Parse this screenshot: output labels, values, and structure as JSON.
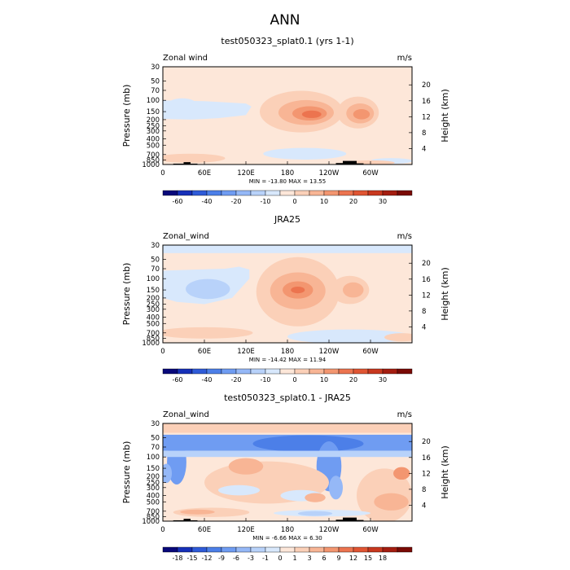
{
  "figure": {
    "main_title": "ANN"
  },
  "colors": {
    "panel_bg": "#FDE7D9",
    "title_gray": "#777777"
  },
  "chart_data": [
    {
      "type": "heatmap",
      "title": "test050323_splat0.1 (yrs 1-1)",
      "variable_label": "Zonal wind",
      "units": "m/s",
      "ylabel": "Pressure (mb)",
      "ylabel_right": "Height (km)",
      "x_ticks": [
        "0",
        "60E",
        "120E",
        "180",
        "120W",
        "60W"
      ],
      "y_ticks": [
        "30",
        "50",
        "70",
        "100",
        "150",
        "200",
        "250",
        "300",
        "400",
        "500",
        "700",
        "850",
        "1000"
      ],
      "y_right_ticks": [
        "20",
        "16",
        "12",
        "8",
        "4"
      ],
      "min_max": "MIN = -13.80   MAX =  13.55",
      "colorbar": {
        "labels": [
          "-60",
          "-40",
          "-20",
          "-10",
          "0",
          "10",
          "20",
          "30"
        ],
        "colors": [
          "#08087A",
          "#1630B8",
          "#2F5BD8",
          "#4C7FE8",
          "#6F9CF2",
          "#95B8F7",
          "#B8D2FA",
          "#D8E8FC",
          "#FDE7D9",
          "#FBD0B8",
          "#F8B595",
          "#F39670",
          "#EC744F",
          "#E05533",
          "#C8381F",
          "#A41D10",
          "#7A0A05"
        ]
      },
      "regions": [
        {
          "shape": "poly",
          "level": "#D8E8FC",
          "pts": [
            [
              0,
              100
            ],
            [
              60,
              103
            ],
            [
              120,
              112
            ],
            [
              128,
              125
            ],
            [
              120,
              170
            ],
            [
              80,
              190
            ],
            [
              40,
              200
            ],
            [
              0,
              195
            ]
          ]
        },
        {
          "shape": "ell",
          "level": "#D8E8FC",
          "lon": 28,
          "p": 120,
          "rx": 22,
          "ry": 30
        },
        {
          "shape": "ell",
          "level": "#FBD0B8",
          "lon": 200,
          "p": 150,
          "rx": 60,
          "ry": 95
        },
        {
          "shape": "ell",
          "level": "#F8B595",
          "lon": 207,
          "p": 155,
          "rx": 40,
          "ry": 65
        },
        {
          "shape": "ell",
          "level": "#F39670",
          "lon": 212,
          "p": 160,
          "rx": 25,
          "ry": 40
        },
        {
          "shape": "ell",
          "level": "#EC744F",
          "lon": 215,
          "p": 165,
          "rx": 14,
          "ry": 22
        },
        {
          "shape": "ell",
          "level": "#FBD0B8",
          "lon": 282,
          "p": 155,
          "rx": 30,
          "ry": 80
        },
        {
          "shape": "ell",
          "level": "#F8B595",
          "lon": 285,
          "p": 160,
          "rx": 20,
          "ry": 55
        },
        {
          "shape": "ell",
          "level": "#F39670",
          "lon": 287,
          "p": 165,
          "rx": 12,
          "ry": 30
        },
        {
          "shape": "ell",
          "level": "#FBD0B8",
          "lon": 40,
          "p": 800,
          "rx": 50,
          "ry": 130
        },
        {
          "shape": "ell",
          "level": "#D8E8FC",
          "lon": 205,
          "p": 680,
          "rx": 60,
          "ry": 140
        },
        {
          "shape": "ell",
          "level": "#D8E8FC",
          "lon": 330,
          "p": 880,
          "rx": 30,
          "ry": 90
        },
        {
          "shape": "ell",
          "level": "#FBD0B8",
          "lon": 300,
          "p": 940,
          "rx": 35,
          "ry": 50
        }
      ],
      "topography": [
        [
          15,
          30,
          1000,
          970
        ],
        [
          30,
          40,
          1000,
          920
        ],
        [
          40,
          50,
          1000,
          970
        ],
        [
          250,
          260,
          1000,
          950
        ],
        [
          260,
          280,
          1000,
          880
        ],
        [
          280,
          290,
          1000,
          960
        ]
      ]
    },
    {
      "type": "heatmap",
      "title": "JRA25",
      "variable_label": "Zonal_wind",
      "units": "m/s",
      "ylabel": "Pressure (mb)",
      "ylabel_right": "Height (km)",
      "x_ticks": [
        "0",
        "60E",
        "120E",
        "180",
        "120W",
        "60W"
      ],
      "y_ticks": [
        "30",
        "50",
        "70",
        "100",
        "150",
        "200",
        "250",
        "300",
        "400",
        "500",
        "700",
        "850",
        "1000"
      ],
      "y_right_ticks": [
        "20",
        "16",
        "12",
        "8",
        "4"
      ],
      "min_max": "MIN = -14.42   MAX =  11.94",
      "colorbar": {
        "labels": [
          "-60",
          "-40",
          "-20",
          "-10",
          "0",
          "10",
          "20",
          "30"
        ],
        "colors": [
          "#08087A",
          "#1630B8",
          "#2F5BD8",
          "#4C7FE8",
          "#6F9CF2",
          "#95B8F7",
          "#B8D2FA",
          "#D8E8FC",
          "#FDE7D9",
          "#FBD0B8",
          "#F8B595",
          "#F39670",
          "#EC744F",
          "#E05533",
          "#C8381F",
          "#A41D10",
          "#7A0A05"
        ]
      },
      "regions": [
        {
          "shape": "band",
          "level": "#D8E8FC",
          "p1": 30,
          "p2": 40
        },
        {
          "shape": "poly",
          "level": "#D8E8FC",
          "pts": [
            [
              0,
              75
            ],
            [
              50,
              72
            ],
            [
              90,
              70
            ],
            [
              110,
              65
            ],
            [
              125,
              72
            ],
            [
              125,
              100
            ],
            [
              100,
              200
            ],
            [
              60,
              250
            ],
            [
              20,
              230
            ],
            [
              0,
              200
            ]
          ]
        },
        {
          "shape": "ell",
          "level": "#B8D2FA",
          "lon": 65,
          "p": 145,
          "rx": 32,
          "ry": 50
        },
        {
          "shape": "ell",
          "level": "#FBD0B8",
          "lon": 195,
          "p": 160,
          "rx": 60,
          "ry": 200
        },
        {
          "shape": "ell",
          "level": "#F8B595",
          "lon": 195,
          "p": 155,
          "rx": 40,
          "ry": 90
        },
        {
          "shape": "ell",
          "level": "#F39670",
          "lon": 195,
          "p": 150,
          "rx": 22,
          "ry": 45
        },
        {
          "shape": "ell",
          "level": "#EC744F",
          "lon": 195,
          "p": 150,
          "rx": 10,
          "ry": 18
        },
        {
          "shape": "ell",
          "level": "#FBD0B8",
          "lon": 270,
          "p": 150,
          "rx": 28,
          "ry": 70
        },
        {
          "shape": "ell",
          "level": "#F8B595",
          "lon": 275,
          "p": 150,
          "rx": 15,
          "ry": 40
        },
        {
          "shape": "ell",
          "level": "#FBD0B8",
          "lon": 60,
          "p": 700,
          "rx": 70,
          "ry": 140
        },
        {
          "shape": "ell",
          "level": "#D8E8FC",
          "lon": 270,
          "p": 800,
          "rx": 90,
          "ry": 200
        },
        {
          "shape": "ell",
          "level": "#FBD0B8",
          "lon": 345,
          "p": 820,
          "rx": 25,
          "ry": 120
        }
      ],
      "topography": []
    },
    {
      "type": "heatmap",
      "title": "test050323_splat0.1 - JRA25",
      "variable_label": "Zonal_wind",
      "units": "m/s",
      "ylabel": "Pressure (mb)",
      "ylabel_right": "Height (km)",
      "x_ticks": [
        "0",
        "60E",
        "120E",
        "180",
        "120W",
        "60W"
      ],
      "y_ticks": [
        "30",
        "50",
        "70",
        "100",
        "150",
        "200",
        "250",
        "300",
        "400",
        "500",
        "700",
        "850",
        "1000"
      ],
      "y_right_ticks": [
        "20",
        "16",
        "12",
        "8",
        "4"
      ],
      "min_max": "MIN = -6.66   MAX =  6.30",
      "colorbar": {
        "labels": [
          "-18",
          "-15",
          "-12",
          "-9",
          "-6",
          "-3",
          "-1",
          "0",
          "1",
          "3",
          "6",
          "9",
          "12",
          "15",
          "18"
        ],
        "colors": [
          "#08087A",
          "#1630B8",
          "#2F5BD8",
          "#4C7FE8",
          "#6F9CF2",
          "#95B8F7",
          "#B8D2FA",
          "#D8E8FC",
          "#FDE7D9",
          "#FBD0B8",
          "#F8B595",
          "#F39670",
          "#EC744F",
          "#E05533",
          "#C8381F",
          "#A41D10",
          "#7A0A05"
        ]
      },
      "regions": [
        {
          "shape": "band",
          "level": "#FBD0B8",
          "p1": 30,
          "p2": 42
        },
        {
          "shape": "band",
          "level": "#6F9CF2",
          "p1": 45,
          "p2": 80
        },
        {
          "shape": "ell",
          "level": "#4C7FE8",
          "lon": 210,
          "p": 62,
          "rx": 80,
          "ry": 18
        },
        {
          "shape": "ell",
          "level": "#6F9CF2",
          "lon": 20,
          "p": 120,
          "rx": 14,
          "ry": 80
        },
        {
          "shape": "ell",
          "level": "#95B8F7",
          "lon": 5,
          "p": 180,
          "rx": 8,
          "ry": 60
        },
        {
          "shape": "ell",
          "level": "#6F9CF2",
          "lon": 240,
          "p": 140,
          "rx": 18,
          "ry": 100
        },
        {
          "shape": "ell",
          "level": "#95B8F7",
          "lon": 250,
          "p": 300,
          "rx": 10,
          "ry": 120
        },
        {
          "shape": "band",
          "level": "#B8D2FA",
          "p1": 80,
          "p2": 100
        },
        {
          "shape": "ell",
          "level": "#FBD0B8",
          "lon": 150,
          "p": 250,
          "rx": 90,
          "ry": 160
        },
        {
          "shape": "ell",
          "level": "#D8E8FC",
          "lon": 110,
          "p": 330,
          "rx": 30,
          "ry": 60
        },
        {
          "shape": "ell",
          "level": "#D8E8FC",
          "lon": 200,
          "p": 400,
          "rx": 30,
          "ry": 80
        },
        {
          "shape": "ell",
          "level": "#F8B595",
          "lon": 120,
          "p": 140,
          "rx": 25,
          "ry": 40
        },
        {
          "shape": "ell",
          "level": "#F8B595",
          "lon": 220,
          "p": 430,
          "rx": 15,
          "ry": 70
        },
        {
          "shape": "ell",
          "level": "#FBD0B8",
          "lon": 320,
          "p": 400,
          "rx": 40,
          "ry": 300
        },
        {
          "shape": "ell",
          "level": "#F8B595",
          "lon": 330,
          "p": 500,
          "rx": 25,
          "ry": 150
        },
        {
          "shape": "ell",
          "level": "#F39670",
          "lon": 345,
          "p": 180,
          "rx": 12,
          "ry": 40
        },
        {
          "shape": "ell",
          "level": "#D8E8FC",
          "lon": 230,
          "p": 750,
          "rx": 70,
          "ry": 90
        },
        {
          "shape": "ell",
          "level": "#B8D2FA",
          "lon": 220,
          "p": 760,
          "rx": 25,
          "ry": 40
        },
        {
          "shape": "ell",
          "level": "#FBD0B8",
          "lon": 70,
          "p": 730,
          "rx": 55,
          "ry": 120
        },
        {
          "shape": "ell",
          "level": "#F8B595",
          "lon": 50,
          "p": 720,
          "rx": 25,
          "ry": 50
        }
      ],
      "topography": [
        [
          15,
          30,
          1000,
          970
        ],
        [
          30,
          40,
          1000,
          920
        ],
        [
          40,
          50,
          1000,
          970
        ],
        [
          250,
          260,
          1000,
          950
        ],
        [
          260,
          280,
          1000,
          880
        ],
        [
          280,
          290,
          1000,
          960
        ]
      ]
    }
  ]
}
